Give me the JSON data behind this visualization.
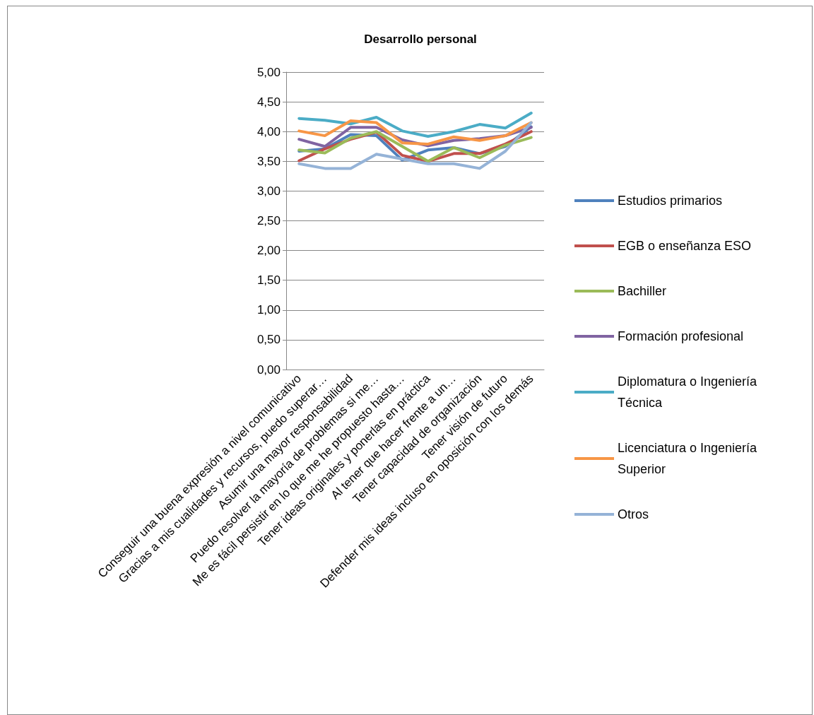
{
  "chart_data": {
    "type": "line",
    "title": "Desarrollo personal",
    "categories": [
      "Conseguir una buena expresión a nivel comunicativo",
      "Gracias a mis cualidades y recursos, puedo superar…",
      "Asumir una mayor responsabilidad",
      "Puedo resolver la mayoría de problemas si me…",
      "Me es fácil persistir en lo que me he propuesto hasta…",
      "Tener ideas originales y ponerlas en práctica",
      "Al tener que hacer frente a un…",
      "Tener capacidad de organización",
      "Tener visión de futuro",
      "Defender mis ideas incluso en oposición con los demás"
    ],
    "series": [
      {
        "name": "Estudios primarios",
        "color": "#4f81bd",
        "values": [
          3.67,
          3.71,
          3.95,
          3.93,
          3.52,
          3.69,
          3.73,
          3.63,
          3.75,
          4.08
        ]
      },
      {
        "name": "EGB o enseñanza ESO",
        "color": "#c0504d",
        "values": [
          3.51,
          3.71,
          3.87,
          3.99,
          3.6,
          3.5,
          3.63,
          3.63,
          3.79,
          4.0
        ]
      },
      {
        "name": "Bachiller",
        "color": "#9bbb59",
        "values": [
          3.69,
          3.64,
          3.89,
          4.0,
          3.75,
          3.5,
          3.73,
          3.56,
          3.77,
          3.9
        ]
      },
      {
        "name": "Formación profesional",
        "color": "#8064a2",
        "values": [
          3.87,
          3.75,
          4.07,
          4.07,
          3.86,
          3.76,
          3.85,
          3.88,
          3.93,
          4.07
        ]
      },
      {
        "name": "Diplomatura o Ingeniería Técnica",
        "color": "#4bacc6",
        "values": [
          4.22,
          4.19,
          4.13,
          4.24,
          4.01,
          3.92,
          4.0,
          4.12,
          4.06,
          4.31
        ]
      },
      {
        "name": "Licenciatura o Ingeniería Superior",
        "color": "#f79646",
        "values": [
          4.01,
          3.93,
          4.18,
          4.15,
          3.81,
          3.79,
          3.91,
          3.85,
          3.93,
          4.15
        ]
      },
      {
        "name": "Otros",
        "color": "#95b3d7",
        "values": [
          3.46,
          3.38,
          3.38,
          3.62,
          3.54,
          3.46,
          3.46,
          3.38,
          3.67,
          4.15
        ]
      }
    ],
    "ylim": [
      0,
      5
    ],
    "yticks": [
      {
        "value": 0,
        "label": "0,00"
      },
      {
        "value": 0.5,
        "label": "0,50"
      },
      {
        "value": 1,
        "label": "1,00"
      },
      {
        "value": 1.5,
        "label": "1,50"
      },
      {
        "value": 2,
        "label": "2,00"
      },
      {
        "value": 2.5,
        "label": "2,50"
      },
      {
        "value": 3,
        "label": "3,00"
      },
      {
        "value": 3.5,
        "label": "3,50"
      },
      {
        "value": 4,
        "label": "4,00"
      },
      {
        "value": 4.5,
        "label": "4,50"
      },
      {
        "value": 5,
        "label": "5,00"
      }
    ],
    "grid": "y",
    "legend": "right",
    "marker": "none",
    "line_style": "solid"
  }
}
